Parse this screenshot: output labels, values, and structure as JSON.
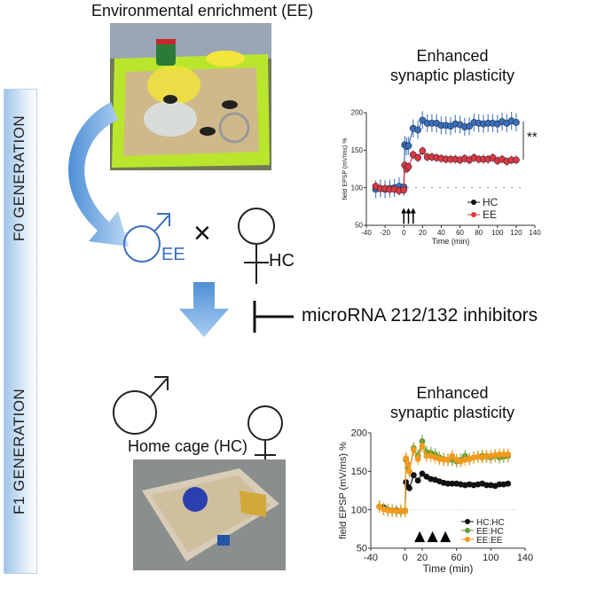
{
  "labels": {
    "ee_title": "Environmental enrichment (EE)",
    "f0": "F0 GENERATION",
    "f1": "F1 GENERATION",
    "male_ee": "EE",
    "cross": "×",
    "female_hc": "HC",
    "inhibitors": "microRNA 212/132 inhibitors",
    "home_cage": "Home cage (HC)",
    "chart1_title_line1": "Enhanced",
    "chart1_title_line2": "synaptic plasticity",
    "chart2_title_line1": "Enhanced",
    "chart2_title_line2": "synaptic plasticity",
    "significance": "**"
  },
  "colors": {
    "ee_blue": "#3b6fc0",
    "bar_blue": "#9fc4e8",
    "arrow_blue": "#6aa0dc"
  },
  "chart_data": [
    {
      "type": "line",
      "ylabel": "field EPSP (mV/ms) %",
      "xlabel": "Time (min)",
      "xlim": [
        -40,
        140
      ],
      "ylim": [
        50,
        200
      ],
      "xticks": [
        -40,
        -20,
        0,
        20,
        40,
        60,
        80,
        100,
        120,
        140
      ],
      "yticks": [
        50,
        100,
        150,
        200
      ],
      "stimulus_arrows": [
        0,
        5,
        10
      ],
      "x": [
        -30,
        -25,
        -20,
        -15,
        -10,
        -5,
        0,
        1,
        3,
        5,
        10,
        15,
        20,
        25,
        30,
        35,
        40,
        45,
        50,
        55,
        60,
        65,
        70,
        75,
        80,
        85,
        90,
        95,
        100,
        105,
        110,
        115,
        120
      ],
      "series": [
        {
          "name": "HC",
          "color": "#3a6fb8",
          "legend_color": "#111111",
          "error": 12,
          "values": [
            98,
            99,
            98,
            99,
            100,
            102,
            101,
            157,
            155,
            156,
            179,
            177,
            190,
            186,
            186,
            186,
            183,
            183,
            182,
            185,
            184,
            181,
            182,
            187,
            186,
            185,
            186,
            186,
            185,
            188,
            186,
            189,
            187
          ]
        },
        {
          "name": "EE",
          "color": "#e0383c",
          "error": 6,
          "values": [
            102,
            99,
            99,
            98,
            98,
            96,
            97,
            130,
            125,
            128,
            144,
            140,
            149,
            141,
            141,
            140,
            139,
            138,
            138,
            138,
            137,
            139,
            137,
            140,
            138,
            138,
            138,
            140,
            136,
            138,
            135,
            137,
            137
          ]
        }
      ]
    },
    {
      "type": "line",
      "ylabel": "field EPSP (mV/ms) %",
      "xlabel": "Time (min)",
      "xlim": [
        -40,
        140
      ],
      "ylim": [
        50,
        200
      ],
      "xticks": [
        -40,
        0,
        20,
        60,
        100,
        140
      ],
      "yticks": [
        50,
        100,
        150,
        200
      ],
      "stimulus_arrows": [
        17,
        32,
        47
      ],
      "x": [
        -30,
        -25,
        -20,
        -15,
        -10,
        -5,
        0,
        1,
        3,
        5,
        10,
        15,
        20,
        25,
        30,
        35,
        40,
        45,
        50,
        55,
        60,
        65,
        70,
        75,
        80,
        85,
        90,
        95,
        100,
        105,
        110,
        115,
        120
      ],
      "series": [
        {
          "name": "HC:HC",
          "color": "#111111",
          "error": 0,
          "values": [
            104,
            103,
            100,
            99,
            99,
            98,
            98,
            136,
            130,
            128,
            145,
            138,
            147,
            143,
            140,
            139,
            137,
            135,
            134,
            134,
            134,
            133,
            132,
            133,
            132,
            133,
            134,
            132,
            132,
            131,
            133,
            133,
            134
          ]
        },
        {
          "name": "EE:HC",
          "color": "#5a9e32",
          "error": 8,
          "values": [
            104,
            101,
            100,
            99,
            98,
            98,
            99,
            165,
            155,
            150,
            180,
            170,
            189,
            175,
            174,
            172,
            168,
            166,
            165,
            165,
            163,
            165,
            170,
            166,
            168,
            169,
            170,
            169,
            168,
            170,
            168,
            169,
            170
          ]
        },
        {
          "name": "EE:EE",
          "color": "#f39a1e",
          "error": 8,
          "values": [
            104,
            101,
            99,
            99,
            98,
            99,
            98,
            167,
            160,
            150,
            178,
            166,
            183,
            170,
            170,
            168,
            166,
            165,
            165,
            170,
            165,
            163,
            165,
            166,
            168,
            169,
            168,
            170,
            170,
            171,
            172,
            172,
            172
          ]
        }
      ]
    }
  ]
}
